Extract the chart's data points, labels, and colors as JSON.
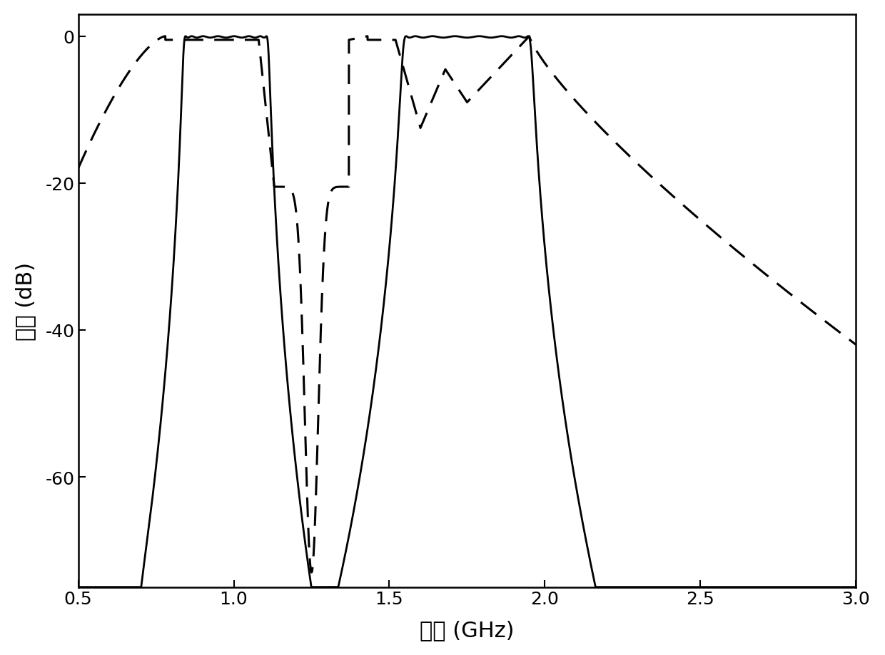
{
  "xlabel": "频率 (GHz)",
  "ylabel": "幅度 (dB)",
  "xlim": [
    0.5,
    3.0
  ],
  "ylim": [
    -75,
    3
  ],
  "yticks": [
    0,
    -20,
    -40,
    -60
  ],
  "xticks": [
    0.5,
    1.0,
    1.5,
    2.0,
    2.5,
    3.0
  ],
  "xtick_labels": [
    "0.5",
    "1.0",
    "1.5",
    "2.0",
    "2.5",
    "3.0"
  ],
  "ytick_labels": [
    "0",
    "-20",
    "-40",
    "-60"
  ],
  "background_color": "#ffffff",
  "line_color": "#000000",
  "font_size_label": 22,
  "font_size_tick": 18,
  "linewidth_solid": 2.0,
  "linewidth_dashed": 2.2,
  "dash_pattern": [
    9,
    5
  ]
}
